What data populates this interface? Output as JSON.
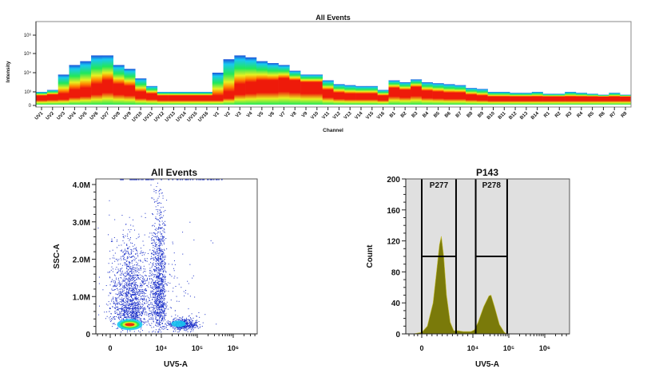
{
  "chart_data": [
    {
      "type": "heatmap",
      "title": "All Events",
      "xlabel": "Channel",
      "ylabel": "Intensity",
      "yscale": "log",
      "yticks": [
        "0",
        "10³",
        "10⁴",
        "10⁵",
        "10⁶"
      ],
      "categories": [
        "UV1",
        "UV2",
        "UV3",
        "UV4",
        "UV5",
        "UV6",
        "UV7",
        "UV8",
        "UV9",
        "UV10",
        "UV11",
        "UV12",
        "UV13",
        "UV14",
        "UV15",
        "UV16",
        "V1",
        "V2",
        "V3",
        "V4",
        "V5",
        "V6",
        "V7",
        "V8",
        "V9",
        "V10",
        "V11",
        "V12",
        "V13",
        "V14",
        "V15",
        "V16",
        "B1",
        "B2",
        "B3",
        "B4",
        "B5",
        "B6",
        "B7",
        "B8",
        "B9",
        "B10",
        "B11",
        "B12",
        "B13",
        "B14",
        "R1",
        "R2",
        "R3",
        "R4",
        "R5",
        "R6",
        "R7",
        "R8"
      ],
      "max_intensity_log10": [
        3.0,
        3.1,
        3.9,
        4.4,
        4.6,
        4.9,
        4.9,
        4.4,
        4.2,
        3.7,
        3.3,
        3.0,
        3.0,
        3.0,
        3.0,
        3.0,
        4.0,
        4.7,
        4.9,
        4.8,
        4.6,
        4.5,
        4.4,
        4.1,
        3.9,
        3.9,
        3.6,
        3.4,
        3.35,
        3.3,
        3.3,
        3.1,
        3.6,
        3.5,
        3.65,
        3.5,
        3.45,
        3.4,
        3.35,
        3.2,
        3.15,
        3.0,
        3.0,
        2.95,
        2.95,
        3.0,
        2.9,
        2.9,
        3.0,
        2.95,
        2.9,
        2.85,
        2.95,
        2.85
      ],
      "median_intensity_log10": [
        2.8,
        2.85,
        2.9,
        3.1,
        3.2,
        3.4,
        3.6,
        3.4,
        3.3,
        3.0,
        2.9,
        2.8,
        2.8,
        2.8,
        2.8,
        2.8,
        2.8,
        3.0,
        3.4,
        3.5,
        3.6,
        3.6,
        3.7,
        3.6,
        3.5,
        3.5,
        3.1,
        2.95,
        2.9,
        2.9,
        2.9,
        2.8,
        3.2,
        3.1,
        3.25,
        3.05,
        3.0,
        2.95,
        2.95,
        2.85,
        2.8,
        2.75,
        2.75,
        2.75,
        2.75,
        2.75,
        2.75,
        2.75,
        2.75,
        2.75,
        2.75,
        2.75,
        2.75,
        2.75
      ],
      "colormap": [
        "#1e4fd8",
        "#18c8f0",
        "#22e85a",
        "#e8f020",
        "#ff8a00",
        "#ee1a0a"
      ]
    },
    {
      "type": "scatter",
      "title": "All Events",
      "xlabel": "UV5-A",
      "ylabel": "SSC-A",
      "xscale": "biexponential",
      "xticks": [
        "0",
        "10⁴",
        "10⁵",
        "10⁶"
      ],
      "yticks": [
        "0",
        "1.0M",
        "2.0M",
        "3.0M",
        "4.0M"
      ],
      "ylim": [
        0,
        4150000
      ],
      "populations": [
        {
          "uv5_a": 1500,
          "ssc_a": 250000,
          "density": "high"
        },
        {
          "uv5_a": 1500,
          "ssc_a": 1200000,
          "density": "low"
        },
        {
          "uv5_a": 9000,
          "ssc_a": 1800000,
          "density": "low"
        },
        {
          "uv5_a": 30000,
          "ssc_a": 270000,
          "density": "medium"
        }
      ]
    },
    {
      "type": "area",
      "title": "P143",
      "xlabel": "UV5-A",
      "ylabel": "Count",
      "xscale": "biexponential",
      "xticks": [
        "0",
        "10⁴",
        "10⁵",
        "10⁶"
      ],
      "yticks": [
        "0",
        "40",
        "80",
        "120",
        "160",
        "200"
      ],
      "ylim": [
        0,
        200
      ],
      "fill": "#7a7a0a",
      "background": "#e0e0e0",
      "x": [
        -500,
        0,
        300,
        700,
        1000,
        1300,
        1500,
        1800,
        2200,
        2800,
        3500,
        4500,
        6000,
        9000,
        11000,
        14000,
        20000,
        28000,
        32000,
        40000,
        55000,
        75000,
        90000
      ],
      "y": [
        0,
        2,
        10,
        40,
        80,
        115,
        126,
        100,
        50,
        15,
        4,
        4,
        3,
        3,
        5,
        15,
        35,
        49,
        50,
        35,
        12,
        2,
        0
      ],
      "gates": [
        {
          "name": "P277",
          "x_min": 0,
          "x_max": 4000,
          "level": 100
        },
        {
          "name": "P278",
          "x_min": 12000,
          "x_max": 90000,
          "level": 100
        }
      ]
    }
  ]
}
